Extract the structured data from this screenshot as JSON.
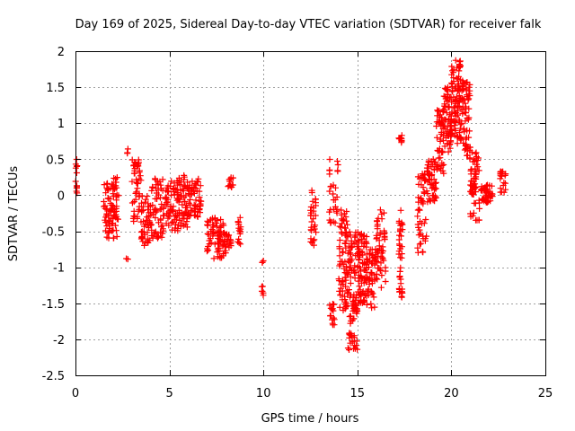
{
  "chart_data": {
    "type": "scatter",
    "title": "Day 169 of 2025, Sidereal Day-to-day VTEC variation (SDTVAR) for receiver falk",
    "xlabel": "GPS time / hours",
    "ylabel": "SDTVAR / TECUs",
    "xlim": [
      0,
      25
    ],
    "ylim": [
      -2.5,
      2
    ],
    "xticks": [
      0,
      5,
      10,
      15,
      20,
      25
    ],
    "xtick_labels": [
      "0",
      "5",
      "10",
      "15",
      "20",
      "25"
    ],
    "yticks": [
      2,
      1.5,
      1,
      0.5,
      0,
      -0.5,
      -1,
      -1.5,
      -2,
      -2.5
    ],
    "ytick_labels": [
      "2",
      "1.5",
      "1",
      "0.5",
      "0",
      "-0.5",
      "-1",
      "-1.5",
      "-2",
      "-2.5"
    ],
    "grid": true,
    "marker": "plus",
    "color": "#ff0000",
    "series": [
      {
        "name": "SDTVAR",
        "clusters": [
          {
            "x": [
              0.0,
              0.1
            ],
            "y": [
              -0.08,
              0.5
            ],
            "n": 12
          },
          {
            "x": [
              1.5,
              1.9
            ],
            "y": [
              -0.6,
              0.2
            ],
            "n": 40
          },
          {
            "x": [
              1.9,
              2.3
            ],
            "y": [
              -0.6,
              0.25
            ],
            "n": 50
          },
          {
            "x": [
              2.7,
              2.8
            ],
            "y": [
              0.55,
              0.65
            ],
            "n": 3
          },
          {
            "x": [
              2.7,
              2.8
            ],
            "y": [
              -0.9,
              -0.85
            ],
            "n": 2
          },
          {
            "x": [
              3.0,
              3.5
            ],
            "y": [
              -0.4,
              0.5
            ],
            "n": 45
          },
          {
            "x": [
              3.5,
              4.0
            ],
            "y": [
              -0.7,
              0.0
            ],
            "n": 45
          },
          {
            "x": [
              4.0,
              4.7
            ],
            "y": [
              -0.6,
              0.25
            ],
            "n": 60
          },
          {
            "x": [
              4.7,
              5.5
            ],
            "y": [
              -0.5,
              0.2
            ],
            "n": 70
          },
          {
            "x": [
              5.5,
              6.0
            ],
            "y": [
              -0.45,
              0.3
            ],
            "n": 50
          },
          {
            "x": [
              6.0,
              6.7
            ],
            "y": [
              -0.3,
              0.25
            ],
            "n": 55
          },
          {
            "x": [
              7.0,
              7.3
            ],
            "y": [
              -0.8,
              -0.3
            ],
            "n": 20
          },
          {
            "x": [
              7.3,
              7.9
            ],
            "y": [
              -0.9,
              -0.3
            ],
            "n": 50
          },
          {
            "x": [
              7.9,
              8.3
            ],
            "y": [
              -0.8,
              -0.5
            ],
            "n": 25
          },
          {
            "x": [
              8.1,
              8.4
            ],
            "y": [
              0.1,
              0.25
            ],
            "n": 12
          },
          {
            "x": [
              8.6,
              8.8
            ],
            "y": [
              -0.7,
              -0.25
            ],
            "n": 15
          },
          {
            "x": [
              9.9,
              10.0
            ],
            "y": [
              -0.95,
              -0.9
            ],
            "n": 3
          },
          {
            "x": [
              9.9,
              10.0
            ],
            "y": [
              -1.4,
              -1.25
            ],
            "n": 6
          },
          {
            "x": [
              12.5,
              12.8
            ],
            "y": [
              -0.7,
              0.1
            ],
            "n": 30
          },
          {
            "x": [
              13.5,
              13.8
            ],
            "y": [
              -1.8,
              -1.5
            ],
            "n": 15
          },
          {
            "x": [
              13.5,
              14.0
            ],
            "y": [
              -0.4,
              0.55
            ],
            "n": 30
          },
          {
            "x": [
              14.0,
              14.5
            ],
            "y": [
              -1.6,
              -0.2
            ],
            "n": 80
          },
          {
            "x": [
              14.5,
              15.0
            ],
            "y": [
              -2.15,
              -0.5
            ],
            "n": 90
          },
          {
            "x": [
              15.0,
              15.5
            ],
            "y": [
              -1.5,
              -0.5
            ],
            "n": 80
          },
          {
            "x": [
              15.5,
              16.0
            ],
            "y": [
              -1.6,
              -0.7
            ],
            "n": 50
          },
          {
            "x": [
              16.0,
              16.5
            ],
            "y": [
              -1.3,
              -0.2
            ],
            "n": 50
          },
          {
            "x": [
              17.2,
              17.4
            ],
            "y": [
              0.7,
              0.85
            ],
            "n": 10
          },
          {
            "x": [
              17.2,
              17.4
            ],
            "y": [
              -1.45,
              -0.2
            ],
            "n": 40
          },
          {
            "x": [
              18.2,
              18.7
            ],
            "y": [
              -0.8,
              0.3
            ],
            "n": 50
          },
          {
            "x": [
              18.7,
              19.2
            ],
            "y": [
              -0.1,
              0.5
            ],
            "n": 50
          },
          {
            "x": [
              19.2,
              19.6
            ],
            "y": [
              0.3,
              1.2
            ],
            "n": 50
          },
          {
            "x": [
              19.6,
              20.0
            ],
            "y": [
              0.6,
              1.5
            ],
            "n": 60
          },
          {
            "x": [
              20.0,
              20.5
            ],
            "y": [
              0.7,
              1.9
            ],
            "n": 80
          },
          {
            "x": [
              20.5,
              21.0
            ],
            "y": [
              0.5,
              1.6
            ],
            "n": 70
          },
          {
            "x": [
              21.0,
              21.5
            ],
            "y": [
              -0.35,
              0.6
            ],
            "n": 60
          },
          {
            "x": [
              21.5,
              22.2
            ],
            "y": [
              -0.1,
              0.15
            ],
            "n": 50
          },
          {
            "x": [
              22.6,
              22.9
            ],
            "y": [
              0.0,
              0.35
            ],
            "n": 20
          }
        ]
      }
    ]
  }
}
